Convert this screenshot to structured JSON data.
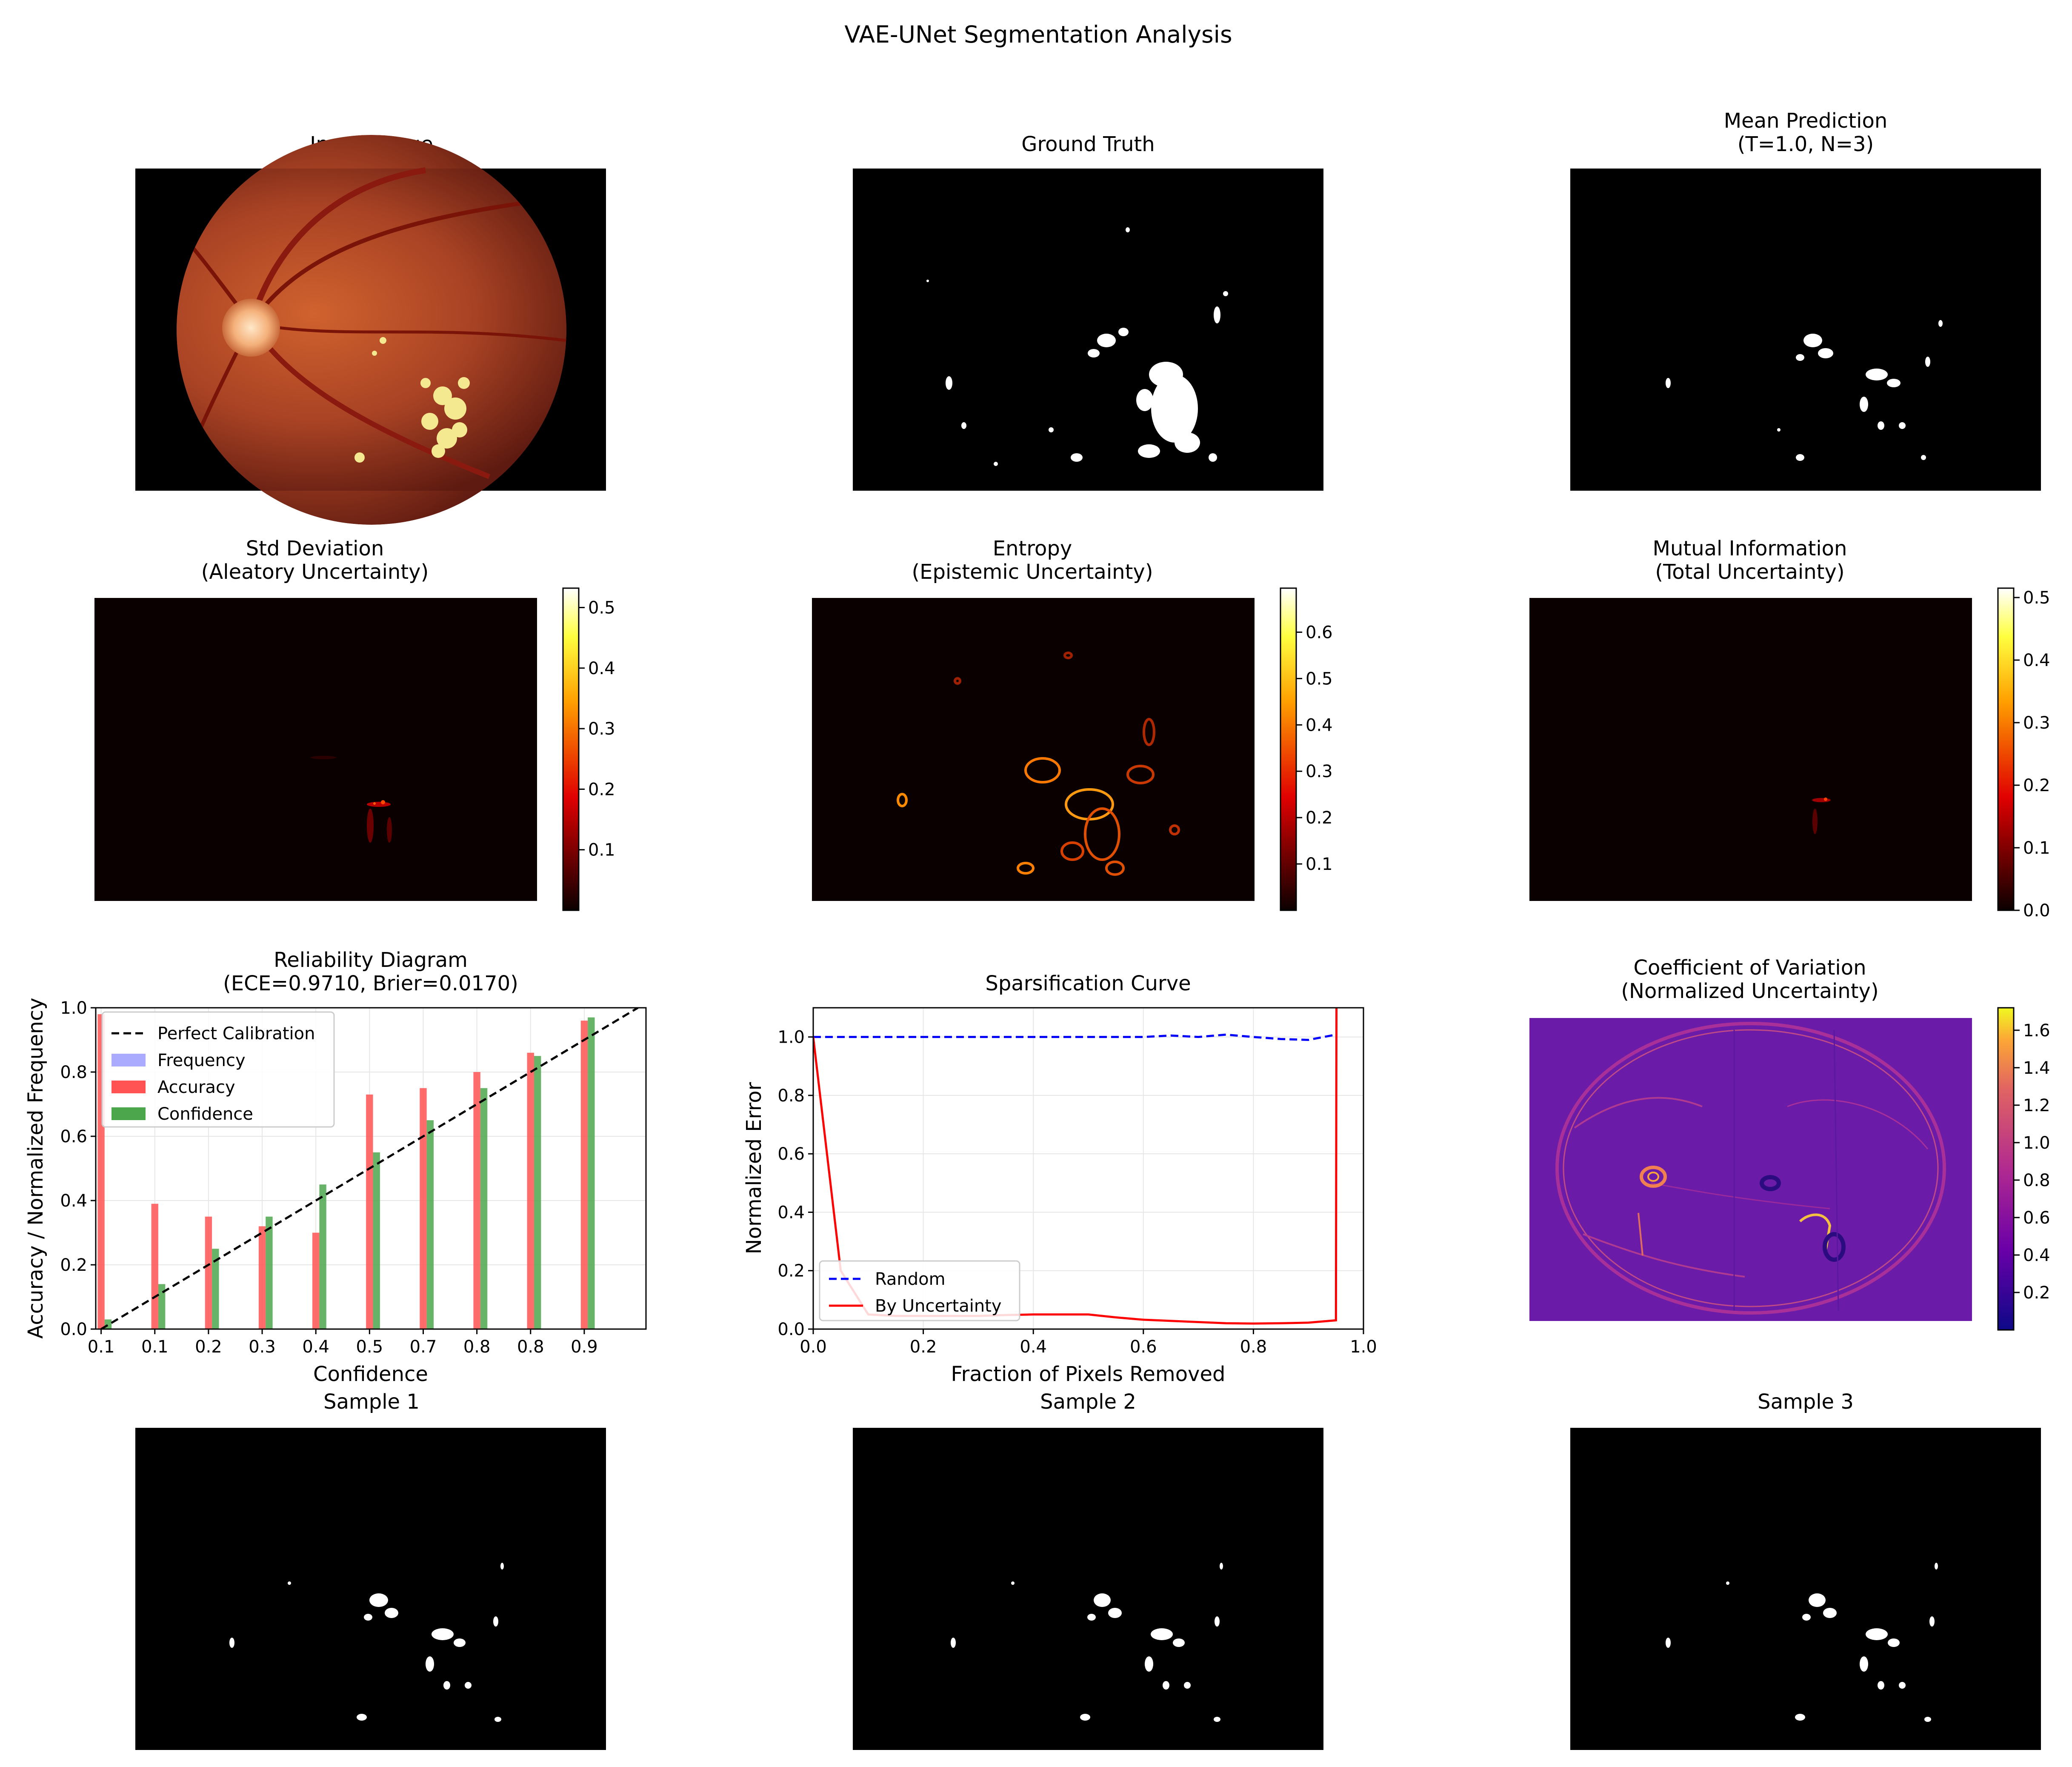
{
  "figure": {
    "title": "VAE-UNet Segmentation Analysis",
    "colors": {
      "black": "#000000",
      "hot_dark": "#0b0000",
      "plasma_bg": "#6a1ca8",
      "random_line": "#0000ff",
      "uncertainty_line": "#ff0000",
      "frequency_bar": "#aaaaff",
      "accuracy_bar": "#ff5252",
      "confidence_bar": "#4ca64c",
      "perfect_calibration": "#000000",
      "grid": "#e6e6e6"
    }
  },
  "panels": {
    "input_image": {
      "title": "Input Image",
      "icon": "retina-fundus-photo"
    },
    "ground_truth": {
      "title": "Ground Truth",
      "icon": "binary-lesion-mask"
    },
    "mean_prediction": {
      "title_line1": "Mean Prediction",
      "title_line2": "(T=1.0, N=3)",
      "icon": "binary-lesion-mask"
    },
    "std_deviation": {
      "title_line1": "Std Deviation",
      "title_line2": "(Aleatory Uncertainty)",
      "colormap": "hot",
      "colorbar_ticks": [
        "0.1",
        "0.2",
        "0.3",
        "0.4",
        "0.5"
      ]
    },
    "entropy": {
      "title_line1": "Entropy",
      "title_line2": "(Epistemic Uncertainty)",
      "colormap": "hot",
      "colorbar_ticks": [
        "0.1",
        "0.2",
        "0.3",
        "0.4",
        "0.5",
        "0.6"
      ]
    },
    "mutual_information": {
      "title_line1": "Mutual Information",
      "title_line2": "(Total Uncertainty)",
      "colormap": "hot",
      "colorbar_ticks": [
        "0.0",
        "0.1",
        "0.2",
        "0.3",
        "0.4",
        "0.5"
      ]
    },
    "coefficient_of_variation": {
      "title_line1": "Coefficient of Variation",
      "title_line2": "(Normalized Uncertainty)",
      "colormap": "plasma",
      "colorbar_ticks": [
        "0.2",
        "0.4",
        "0.6",
        "0.8",
        "1.0",
        "1.2",
        "1.4",
        "1.6"
      ]
    },
    "sample_1": {
      "title": "Sample 1",
      "icon": "binary-lesion-mask"
    },
    "sample_2": {
      "title": "Sample 2",
      "icon": "binary-lesion-mask"
    },
    "sample_3": {
      "title": "Sample 3",
      "icon": "binary-lesion-mask"
    }
  },
  "chart_data": [
    {
      "type": "bar",
      "title_line1": "Reliability Diagram",
      "title_line2": "(ECE=0.9710, Brier=0.0170)",
      "xlabel": "Confidence",
      "ylabel": "Accuracy / Normalized Frequency",
      "xlim": [
        0.0,
        1.0
      ],
      "ylim": [
        0.0,
        1.0
      ],
      "x_tick_labels": [
        "0.1",
        "0.1",
        "0.2",
        "0.3",
        "0.4",
        "0.5",
        "0.7",
        "0.8",
        "0.8",
        "0.9"
      ],
      "y_ticks": [
        "0.0",
        "0.2",
        "0.4",
        "0.6",
        "0.8",
        "1.0"
      ],
      "bin_centers": [
        0.0,
        0.1,
        0.2,
        0.3,
        0.4,
        0.5,
        0.6,
        0.7,
        0.8,
        0.9
      ],
      "series": [
        {
          "name": "Frequency",
          "values": [
            0,
            0,
            0,
            0,
            0,
            0,
            0,
            0,
            0,
            0
          ]
        },
        {
          "name": "Accuracy",
          "values": [
            0.98,
            0.39,
            0.35,
            0.32,
            0.3,
            0.73,
            0.75,
            0.8,
            0.86,
            0.96
          ]
        },
        {
          "name": "Confidence",
          "values": [
            0.03,
            0.14,
            0.25,
            0.35,
            0.45,
            0.55,
            0.65,
            0.75,
            0.85,
            0.97
          ]
        }
      ],
      "reference_line": {
        "name": "Perfect Calibration",
        "x": [
          0.0,
          1.0
        ],
        "y": [
          0.0,
          1.0
        ]
      },
      "legend": "top-left",
      "grid": true
    },
    {
      "type": "line",
      "title": "Sparsification Curve",
      "xlabel": "Fraction of Pixels Removed",
      "ylabel": "Normalized Error",
      "xlim": [
        0.0,
        1.0
      ],
      "ylim": [
        0.0,
        1.1
      ],
      "x_ticks": [
        "0.0",
        "0.2",
        "0.4",
        "0.6",
        "0.8",
        "1.0"
      ],
      "y_ticks": [
        "0.0",
        "0.2",
        "0.4",
        "0.6",
        "0.8",
        "1.0"
      ],
      "series": [
        {
          "name": "Random",
          "style": "dashed",
          "x": [
            0.0,
            0.05,
            0.1,
            0.15,
            0.2,
            0.25,
            0.3,
            0.35,
            0.4,
            0.45,
            0.5,
            0.55,
            0.6,
            0.65,
            0.7,
            0.75,
            0.8,
            0.85,
            0.9,
            0.95
          ],
          "y": [
            1.0,
            1.0,
            1.0,
            1.0,
            1.0,
            1.0,
            1.0,
            1.0,
            1.0,
            1.0,
            1.0,
            1.0,
            1.0,
            1.005,
            1.0,
            1.008,
            1.0,
            0.993,
            0.99,
            1.008
          ]
        },
        {
          "name": "By Uncertainty",
          "style": "solid",
          "x": [
            0.0,
            0.05,
            0.1,
            0.15,
            0.2,
            0.25,
            0.3,
            0.35,
            0.4,
            0.45,
            0.5,
            0.55,
            0.6,
            0.65,
            0.7,
            0.75,
            0.8,
            0.85,
            0.9,
            0.95,
            0.951
          ],
          "y": [
            1.0,
            0.2,
            0.05,
            0.045,
            0.045,
            0.045,
            0.045,
            0.048,
            0.05,
            0.05,
            0.05,
            0.04,
            0.032,
            0.028,
            0.024,
            0.02,
            0.019,
            0.02,
            0.022,
            0.03,
            1.2
          ]
        }
      ],
      "legend": "bottom-left",
      "grid": true
    }
  ]
}
